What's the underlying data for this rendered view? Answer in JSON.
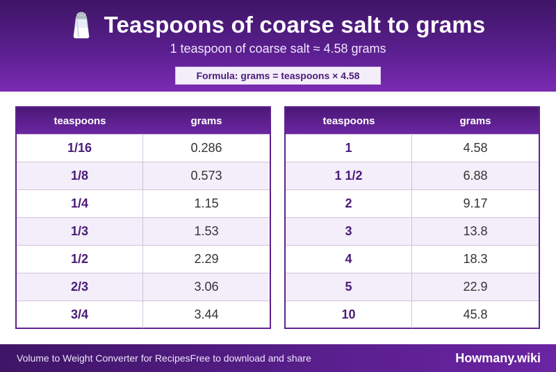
{
  "header": {
    "title": "Teaspoons of coarse salt to grams",
    "subtitle": "1 teaspoon of coarse salt ≈ 4.58 grams",
    "formula": "Formula: grams = teaspoons × 4.58",
    "icon": "salt-shaker-icon"
  },
  "tables": [
    {
      "columns": [
        "teaspoons",
        "grams"
      ],
      "rows": [
        {
          "teaspoons": "1/16",
          "grams": "0.286"
        },
        {
          "teaspoons": "1/8",
          "grams": "0.573"
        },
        {
          "teaspoons": "1/4",
          "grams": "1.15"
        },
        {
          "teaspoons": "1/3",
          "grams": "1.53"
        },
        {
          "teaspoons": "1/2",
          "grams": "2.29"
        },
        {
          "teaspoons": "2/3",
          "grams": "3.06"
        },
        {
          "teaspoons": "3/4",
          "grams": "3.44"
        }
      ]
    },
    {
      "columns": [
        "teaspoons",
        "grams"
      ],
      "rows": [
        {
          "teaspoons": "1",
          "grams": "4.58"
        },
        {
          "teaspoons": "1 1/2",
          "grams": "6.88"
        },
        {
          "teaspoons": "2",
          "grams": "9.17"
        },
        {
          "teaspoons": "3",
          "grams": "13.8"
        },
        {
          "teaspoons": "4",
          "grams": "18.3"
        },
        {
          "teaspoons": "5",
          "grams": "22.9"
        },
        {
          "teaspoons": "10",
          "grams": "45.8"
        }
      ]
    }
  ],
  "footer": {
    "text": "Volume to Weight Converter for RecipesFree to download and share",
    "brand": "Howmany.wiki"
  },
  "colors": {
    "brand_purple": "#5a1f8e",
    "dark_purple": "#3e1566",
    "row_alt": "#f3eef9"
  }
}
